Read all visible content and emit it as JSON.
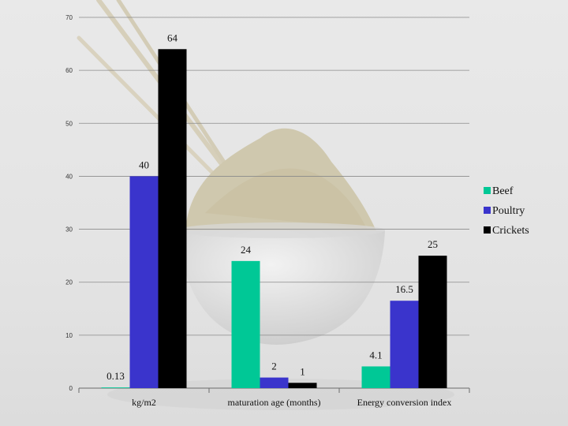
{
  "chart_data": {
    "type": "bar",
    "categories": [
      "kg/m2",
      "maturation age (months)",
      "Energy conversion  index"
    ],
    "series": [
      {
        "name": "Beef",
        "values": [
          0.13,
          24,
          4.1
        ],
        "color": "#00c896"
      },
      {
        "name": "Poultry",
        "values": [
          40,
          2,
          16.5
        ],
        "color": "#3a34cc"
      },
      {
        "name": "Crickets",
        "values": [
          64,
          1,
          25
        ],
        "color": "#000000"
      }
    ],
    "data_labels": [
      [
        "0.13",
        "24",
        "4.1"
      ],
      [
        "40",
        "2",
        "16.5"
      ],
      [
        "64",
        "1",
        "25"
      ]
    ],
    "y_ticks": [
      "0",
      "10",
      "20",
      "30",
      "40",
      "50",
      "60",
      "70"
    ],
    "ylim": [
      0,
      70
    ],
    "grid": true,
    "legend_position": "right"
  }
}
